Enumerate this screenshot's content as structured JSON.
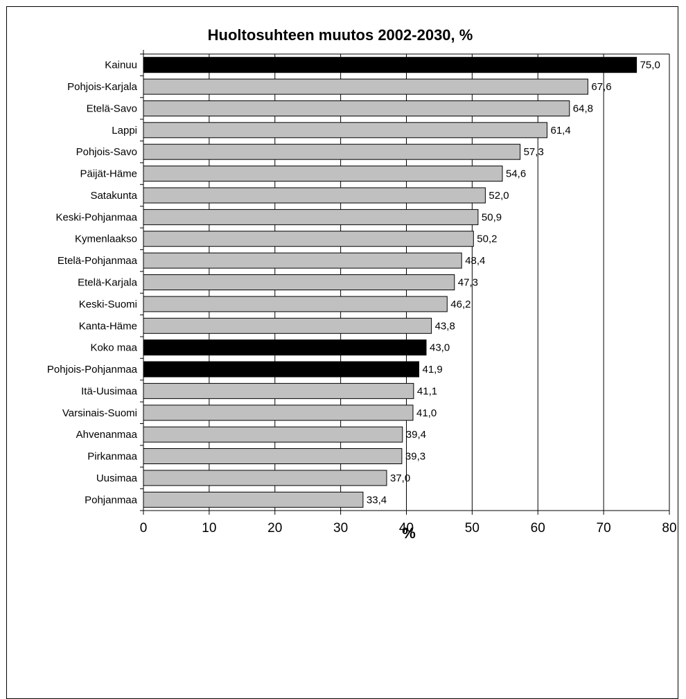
{
  "chart_data": {
    "type": "bar",
    "orientation": "horizontal",
    "title": "Huoltosuhteen muutos 2002-2030, %",
    "xlabel": "%",
    "ylabel": "",
    "xlim": [
      0,
      80
    ],
    "x_ticks": [
      0,
      10,
      20,
      30,
      40,
      50,
      60,
      70,
      80
    ],
    "grid": "vertical",
    "legend": "none",
    "categories": [
      "Kainuu",
      "Pohjois-Karjala",
      "Etelä-Savo",
      "Lappi",
      "Pohjois-Savo",
      "Päijät-Häme",
      "Satakunta",
      "Keski-Pohjanmaa",
      "Kymenlaakso",
      "Etelä-Pohjanmaa",
      "Etelä-Karjala",
      "Keski-Suomi",
      "Kanta-Häme",
      "Koko maa",
      "Pohjois-Pohjanmaa",
      "Itä-Uusimaa",
      "Varsinais-Suomi",
      "Ahvenanmaa",
      "Pirkanmaa",
      "Uusimaa",
      "Pohjanmaa"
    ],
    "values": [
      75.0,
      67.6,
      64.8,
      61.4,
      57.3,
      54.6,
      52.0,
      50.9,
      50.2,
      48.4,
      47.3,
      46.2,
      43.8,
      43.0,
      41.9,
      41.1,
      41.0,
      39.4,
      39.3,
      37.0,
      33.4
    ],
    "value_labels": [
      "75,0",
      "67,6",
      "64,8",
      "61,4",
      "57,3",
      "54,6",
      "52,0",
      "50,9",
      "50,2",
      "48,4",
      "47,3",
      "46,2",
      "43,8",
      "43,0",
      "41,9",
      "41,1",
      "41,0",
      "39,4",
      "39,3",
      "37,0",
      "33,4"
    ],
    "highlighted": [
      "Kainuu",
      "Koko maa",
      "Pohjois-Pohjanmaa"
    ],
    "colors": {
      "bar": "#c0c0c0",
      "highlight": "#000000",
      "outline": "#000000",
      "grid": "#000000"
    }
  }
}
